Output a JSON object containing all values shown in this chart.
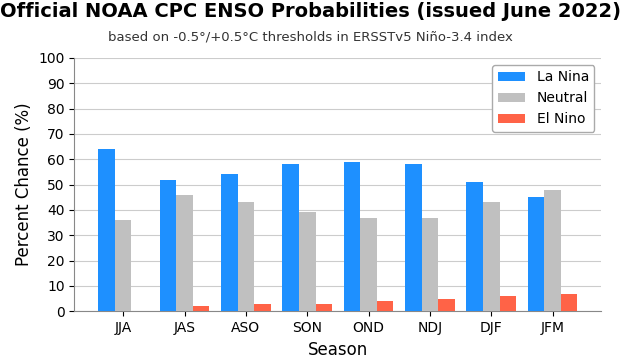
{
  "title": "Official NOAA CPC ENSO Probabilities (issued June 2022)",
  "subtitle": "based on -0.5°/+0.5°C thresholds in ERSSTv5 Niño-3.4 index",
  "xlabel": "Season",
  "ylabel": "Percent Chance (%)",
  "seasons": [
    "JJA",
    "JAS",
    "ASO",
    "SON",
    "OND",
    "NDJ",
    "DJF",
    "JFM"
  ],
  "la_nina": [
    64,
    52,
    54,
    58,
    59,
    58,
    51,
    45
  ],
  "neutral": [
    36,
    46,
    43,
    39,
    37,
    37,
    43,
    48
  ],
  "el_nino": [
    0,
    2,
    3,
    3,
    4,
    5,
    6,
    7
  ],
  "la_nina_color": "#1E90FF",
  "neutral_color": "#C0C0C0",
  "el_nino_color": "#FF6347",
  "ylim": [
    0,
    100
  ],
  "yticks": [
    0,
    10,
    20,
    30,
    40,
    50,
    60,
    70,
    80,
    90,
    100
  ],
  "title_fontsize": 14,
  "subtitle_fontsize": 9.5,
  "axis_label_fontsize": 12,
  "tick_fontsize": 10,
  "legend_fontsize": 10,
  "bar_width": 0.27,
  "background_color": "#FFFFFF",
  "plot_bg_color": "#FFFFFF",
  "grid_color": "#CCCCCC"
}
